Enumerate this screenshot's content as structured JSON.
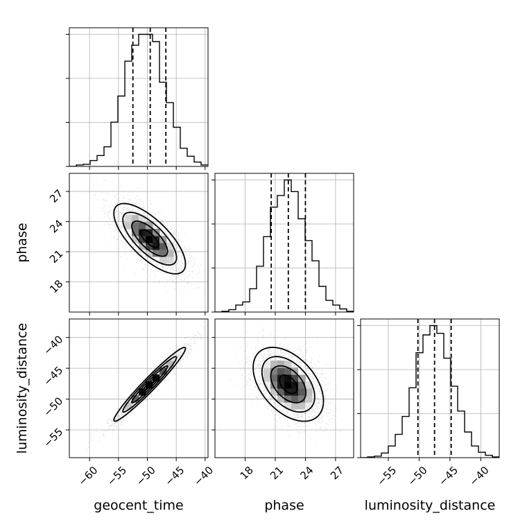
{
  "chart_data": {
    "type": "corner",
    "params": [
      "geocent_time",
      "phase",
      "luminosity_distance"
    ],
    "axis_labels": {
      "geocent_time": "geocent_time",
      "phase": "phase",
      "luminosity_distance": "luminosity_distance"
    },
    "ranges": {
      "geocent_time": [
        -63.5,
        -39.5
      ],
      "phase": [
        15.0,
        28.8
      ],
      "luminosity_distance": [
        -59.5,
        -37.0
      ]
    },
    "ticks": {
      "geocent_time": [
        -60,
        -55,
        -50,
        -45,
        -40
      ],
      "phase": [
        18,
        21,
        24,
        27
      ],
      "luminosity_distance": [
        -55,
        -50,
        -45,
        -40
      ]
    },
    "tick_labels": {
      "geocent_time": [
        "−60",
        "−55",
        "−50",
        "−45",
        "−40"
      ],
      "phase": [
        "18",
        "21",
        "24",
        "27"
      ],
      "luminosity_distance": [
        "−55",
        "−50",
        "−45",
        "−40"
      ]
    },
    "histograms": [
      {
        "param": "geocent_time",
        "bin_edges": [
          -63.5,
          -62.3,
          -61.1,
          -59.9,
          -58.7,
          -57.5,
          -56.3,
          -55.1,
          -53.9,
          -52.7,
          -51.5,
          -50.3,
          -49.1,
          -47.9,
          -46.7,
          -45.5,
          -44.3,
          -43.1,
          -41.9,
          -40.7,
          -39.5
        ],
        "counts": [
          0,
          2,
          3,
          8,
          15,
          27,
          61,
          97,
          145,
          167,
          182,
          182,
          172,
          116,
          88,
          54,
          25,
          14,
          6,
          2
        ],
        "quantiles": [
          -52.5,
          -49.5,
          -46.8
        ]
      },
      {
        "param": "phase",
        "bin_edges": [
          15.0,
          15.69,
          16.38,
          17.07,
          17.76,
          18.45,
          19.14,
          19.83,
          20.52,
          21.21,
          21.9,
          22.59,
          23.28,
          23.97,
          24.66,
          25.35,
          26.04,
          26.73,
          27.42,
          28.11,
          28.8
        ],
        "counts": [
          0,
          1,
          3,
          9,
          13,
          30,
          59,
          97,
          135,
          150,
          170,
          155,
          120,
          92,
          66,
          33,
          15,
          9,
          4,
          1
        ],
        "quantiles": [
          20.6,
          22.3,
          24.0
        ]
      },
      {
        "param": "luminosity_distance",
        "bin_edges": [
          -59.5,
          -58.375,
          -57.25,
          -56.125,
          -55.0,
          -53.875,
          -52.75,
          -51.625,
          -50.5,
          -49.375,
          -48.25,
          -47.125,
          -46.0,
          -44.875,
          -43.75,
          -42.625,
          -41.5,
          -40.375,
          -39.25,
          -38.125,
          -37.0
        ],
        "counts": [
          0,
          1,
          2,
          6,
          15,
          30,
          53,
          90,
          135,
          158,
          170,
          160,
          128,
          92,
          60,
          33,
          15,
          7,
          3,
          1
        ],
        "quantiles": [
          -50.2,
          -47.5,
          -44.8
        ]
      }
    ],
    "pairs": [
      {
        "x": "geocent_time",
        "y": "phase",
        "mean": [
          -49.6,
          22.3
        ],
        "std": [
          3.1,
          1.75
        ],
        "corr": -0.72,
        "contour_levels": [
          0.5,
          1.0,
          1.5,
          2.0
        ]
      },
      {
        "x": "geocent_time",
        "y": "luminosity_distance",
        "mean": [
          -49.6,
          -47.6
        ],
        "std": [
          3.1,
          3.0
        ],
        "corr": 0.97,
        "contour_levels": [
          0.5,
          1.0,
          1.5,
          2.0
        ]
      },
      {
        "x": "phase",
        "y": "luminosity_distance",
        "mean": [
          22.3,
          -47.6
        ],
        "std": [
          1.75,
          3.0
        ],
        "corr": -0.45,
        "contour_levels": [
          0.5,
          1.0,
          1.5,
          2.0
        ]
      }
    ],
    "grid": true,
    "colors": {
      "line": "#000000",
      "grid": "#b0b0b0",
      "scatter": "#8a8a8a",
      "density_dark": "#000000",
      "density_light": "#ffffff"
    }
  }
}
